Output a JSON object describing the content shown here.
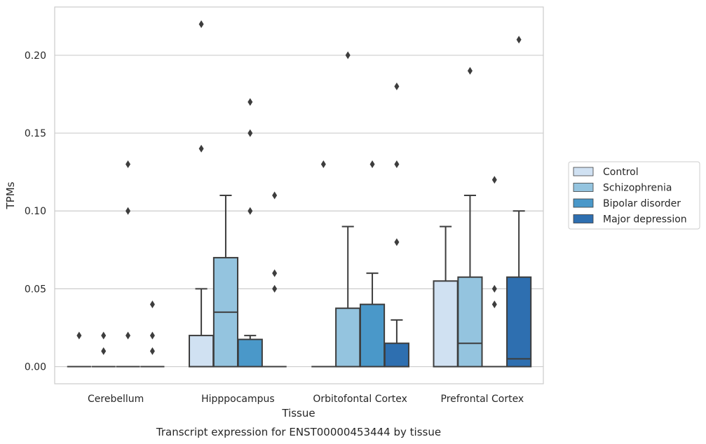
{
  "chart_data": {
    "type": "box",
    "xlabel": "Tissue",
    "ylabel": "TPMs",
    "caption": "Transcript expression for ENST00000453444 by tissue",
    "ylim": [
      -0.011,
      0.231
    ],
    "yticks": [
      "0.00",
      "0.05",
      "0.10",
      "0.15",
      "0.20"
    ],
    "ytick_values": [
      0,
      0.05,
      0.1,
      0.15,
      0.2
    ],
    "grid": "horizontal",
    "legend_position": "right",
    "categories": [
      "Cerebellum",
      "Hipppocampus",
      "Orbitofontal Cortex",
      "Prefrontal Cortex"
    ],
    "series": [
      {
        "name": "Control",
        "color": "#d0e1f2",
        "boxes": [
          {
            "whislo": 0,
            "q1": 0,
            "med": 0,
            "q3": 0,
            "whishi": 0,
            "fliers": [
              0.02
            ]
          },
          {
            "whislo": 0,
            "q1": 0,
            "med": 0,
            "q3": 0.02,
            "whishi": 0.05,
            "fliers": [
              0.14,
              0.22
            ]
          },
          {
            "whislo": 0,
            "q1": 0,
            "med": 0,
            "q3": 0,
            "whishi": 0,
            "fliers": [
              0.13
            ]
          },
          {
            "whislo": 0,
            "q1": 0,
            "med": 0,
            "q3": 0.055,
            "whishi": 0.09,
            "fliers": []
          }
        ]
      },
      {
        "name": "Schizophrenia",
        "color": "#94c4df",
        "boxes": [
          {
            "whislo": 0,
            "q1": 0,
            "med": 0,
            "q3": 0,
            "whishi": 0,
            "fliers": [
              0.01,
              0.02
            ]
          },
          {
            "whislo": 0,
            "q1": 0,
            "med": 0.035,
            "q3": 0.07,
            "whishi": 0.11,
            "fliers": []
          },
          {
            "whislo": 0,
            "q1": 0,
            "med": 0,
            "q3": 0.0375,
            "whishi": 0.09,
            "fliers": [
              0.2
            ]
          },
          {
            "whislo": 0,
            "q1": 0,
            "med": 0.015,
            "q3": 0.0575,
            "whishi": 0.11,
            "fliers": [
              0.19
            ]
          }
        ]
      },
      {
        "name": "Bipolar disorder",
        "color": "#4a98c9",
        "boxes": [
          {
            "whislo": 0,
            "q1": 0,
            "med": 0,
            "q3": 0,
            "whishi": 0,
            "fliers": [
              0.02,
              0.1,
              0.13
            ]
          },
          {
            "whislo": 0,
            "q1": 0,
            "med": 0,
            "q3": 0.0175,
            "whishi": 0.02,
            "fliers": [
              0.1,
              0.15,
              0.17
            ]
          },
          {
            "whislo": 0,
            "q1": 0,
            "med": 0,
            "q3": 0.04,
            "whishi": 0.06,
            "fliers": [
              0.13
            ]
          },
          {
            "whislo": 0,
            "q1": 0,
            "med": 0,
            "q3": 0,
            "whishi": 0,
            "fliers": [
              0.04,
              0.05,
              0.12
            ]
          }
        ]
      },
      {
        "name": "Major depression",
        "color": "#2e6fb0",
        "boxes": [
          {
            "whislo": 0,
            "q1": 0,
            "med": 0,
            "q3": 0,
            "whishi": 0,
            "fliers": [
              0.01,
              0.02,
              0.04
            ]
          },
          {
            "whislo": 0,
            "q1": 0,
            "med": 0,
            "q3": 0,
            "whishi": 0,
            "fliers": [
              0.05,
              0.06,
              0.11
            ]
          },
          {
            "whislo": 0,
            "q1": 0,
            "med": 0,
            "q3": 0.015,
            "whishi": 0.03,
            "fliers": [
              0.08,
              0.13,
              0.18
            ]
          },
          {
            "whislo": 0,
            "q1": 0,
            "med": 0.005,
            "q3": 0.0575,
            "whishi": 0.1,
            "fliers": [
              0.21
            ]
          }
        ]
      }
    ]
  }
}
